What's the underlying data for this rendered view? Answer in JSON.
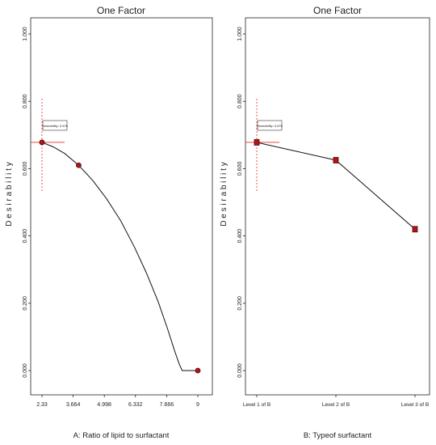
{
  "colors": {
    "frame": "#222222",
    "line": "#111111",
    "point_fill": "#b3141c",
    "point_stroke": "#4a0a0a",
    "crosshair": "#e32b2b"
  },
  "chart_data": [
    {
      "type": "line",
      "title": "One Factor",
      "xlabel": "A: Ratio of lipid to surfactant",
      "ylabel": "D e s i r a b i l i t y",
      "x_ticks": [
        2.33,
        3.664,
        4.998,
        6.332,
        7.666,
        9
      ],
      "x_tick_labels": [
        "2.33",
        "3.664",
        "4.998",
        "6.332",
        "7.666",
        "9"
      ],
      "xlim": [
        2.33,
        9
      ],
      "ylim": [
        0,
        1
      ],
      "y_ticks": [
        0,
        0.2,
        0.4,
        0.6,
        0.8,
        1.0
      ],
      "y_tick_labels": [
        "0.000",
        "0.200",
        "0.400",
        "0.600",
        "0.800",
        "1.000"
      ],
      "curve_x": [
        2.33,
        2.8,
        3.3,
        3.9,
        4.5,
        5.1,
        5.7,
        6.3,
        6.8,
        7.3,
        7.7,
        8.0,
        8.2,
        8.33,
        8.5,
        9.0
      ],
      "curve_y": [
        0.678,
        0.665,
        0.645,
        0.61,
        0.565,
        0.51,
        0.445,
        0.365,
        0.29,
        0.205,
        0.125,
        0.06,
        0.02,
        0.0,
        0.0,
        0.0
      ],
      "points": [
        {
          "x": 2.33,
          "y": 0.678
        },
        {
          "x": 3.9,
          "y": 0.61
        },
        {
          "x": 9.0,
          "y": 0.0
        }
      ],
      "crosshair": {
        "x": 2.33,
        "y": 0.678
      },
      "callout": "Desirability: 0.678"
    },
    {
      "type": "line",
      "title": "One Factor",
      "xlabel": "B: Typeof surfactant",
      "ylabel": "D e s i r a b i l i t y",
      "categories": [
        "Level 1 of B",
        "Level 2 of B",
        "Level 3 of B"
      ],
      "ylim": [
        0,
        1
      ],
      "y_ticks": [
        0,
        0.2,
        0.4,
        0.6,
        0.8,
        1.0
      ],
      "y_tick_labels": [
        "0.000",
        "0.200",
        "0.400",
        "0.600",
        "0.800",
        "1.000"
      ],
      "values": [
        0.678,
        0.625,
        0.42
      ],
      "crosshair": {
        "x_index": 0,
        "y": 0.678
      },
      "callout": "Desirability: 0.678"
    }
  ]
}
